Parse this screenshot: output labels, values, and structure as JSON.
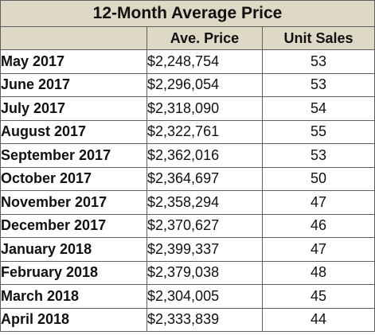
{
  "chart_data": {
    "type": "table",
    "title": "12-Month Average Price",
    "columns": [
      "",
      "Ave. Price",
      "Unit Sales"
    ],
    "rows": [
      {
        "month": "May 2017",
        "price": "$2,248,754",
        "sales": "53"
      },
      {
        "month": "June 2017",
        "price": "$2,296,054",
        "sales": "53"
      },
      {
        "month": "July 2017",
        "price": "$2,318,090",
        "sales": "54"
      },
      {
        "month": "August 2017",
        "price": "$2,322,761",
        "sales": "55"
      },
      {
        "month": "September 2017",
        "price": "$2,362,016",
        "sales": "53"
      },
      {
        "month": "October 2017",
        "price": "$2,364,697",
        "sales": "50"
      },
      {
        "month": "November 2017",
        "price": "$2,358,294",
        "sales": "47"
      },
      {
        "month": "December 2017",
        "price": "$2,370,627",
        "sales": "46"
      },
      {
        "month": "January 2018",
        "price": "$2,399,337",
        "sales": "47"
      },
      {
        "month": "February 2018",
        "price": "$2,379,038",
        "sales": "48"
      },
      {
        "month": "March 2018",
        "price": "$2,304,005",
        "sales": "45"
      },
      {
        "month": "April 2018",
        "price": "$2,333,839",
        "sales": "44"
      }
    ]
  },
  "colors": {
    "header_bg": "#ddd9c4",
    "border": "#5f5f5f",
    "text": "#111111"
  }
}
